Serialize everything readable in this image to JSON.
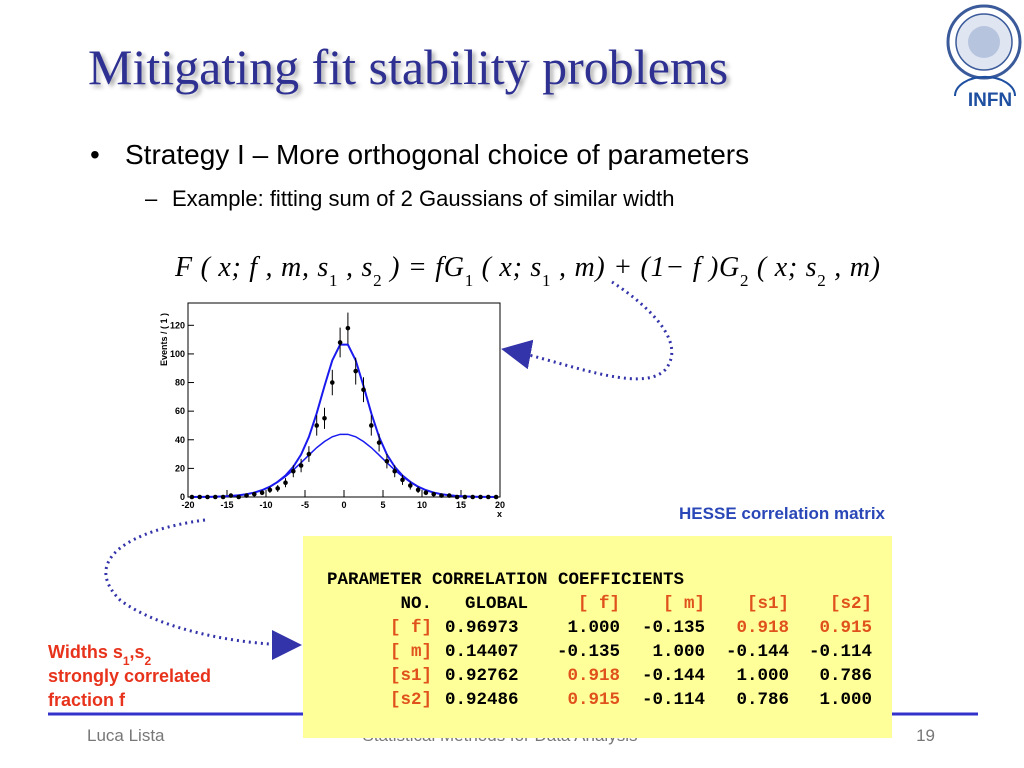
{
  "title": "Mitigating fit stability problems",
  "bullets": [
    {
      "text": "Strategy I – More orthogonal choice of parameters",
      "sub": [
        "Example: fitting sum of 2 Gaussians of similar width"
      ]
    }
  ],
  "formula": [
    "F ( x; f , m, s",
    "1",
    " , s",
    "2",
    " ) = fG",
    "1",
    " ( x; s",
    "1",
    " , m) + (1− f )G",
    "2",
    " ( x; s",
    "2",
    " , m)"
  ],
  "chart_data": {
    "type": "scatter",
    "ylabel": "Events / ( 1 )",
    "xlabel": "x",
    "xlim": [
      -20,
      20
    ],
    "ylim": [
      0,
      130
    ],
    "xticks": [
      -20,
      -15,
      -10,
      -5,
      0,
      5,
      10,
      15,
      20
    ],
    "yticks": [
      0,
      20,
      40,
      60,
      80,
      100,
      120
    ],
    "x": [
      -19.5,
      -18.5,
      -17.5,
      -16.5,
      -15.5,
      -14.5,
      -13.5,
      -12.5,
      -11.5,
      -10.5,
      -9.5,
      -8.5,
      -7.5,
      -6.5,
      -5.5,
      -4.5,
      -3.5,
      -2.5,
      -1.5,
      -0.5,
      0.5,
      1.5,
      2.5,
      3.5,
      4.5,
      5.5,
      6.5,
      7.5,
      8.5,
      9.5,
      10.5,
      11.5,
      12.5,
      13.5,
      14.5,
      15.5,
      16.5,
      17.5,
      18.5,
      19.5
    ],
    "values": [
      0,
      0,
      0,
      0,
      0,
      1,
      0,
      1,
      2,
      3,
      5,
      6,
      10,
      18,
      22,
      30,
      50,
      55,
      80,
      108,
      118,
      88,
      75,
      50,
      38,
      25,
      18,
      12,
      8,
      5,
      3,
      2,
      1,
      1,
      0,
      0,
      0,
      0,
      0,
      0
    ],
    "errors": [
      0,
      0,
      0,
      0,
      0,
      1,
      0,
      1,
      1.4,
      1.7,
      2.2,
      2.4,
      3.2,
      4.2,
      4.7,
      5.5,
      7.1,
      7.4,
      8.9,
      10.4,
      10.9,
      9.4,
      8.7,
      7.1,
      6.2,
      5,
      4.2,
      3.5,
      2.8,
      2.2,
      1.7,
      1.4,
      1,
      1,
      0,
      0,
      0,
      0,
      0,
      0
    ],
    "fit": [
      0,
      0.1,
      0.1,
      0.2,
      0.4,
      0.7,
      1.2,
      1.9,
      3.1,
      4.8,
      7.2,
      10.6,
      15,
      21.1,
      29.7,
      42,
      58.5,
      77.6,
      95.5,
      106.5,
      106.5,
      95.5,
      77.6,
      58.5,
      42,
      29.7,
      21.1,
      15,
      10.6,
      7.2,
      4.8,
      3.1,
      1.9,
      1.2,
      0.7,
      0.4,
      0.2,
      0.1,
      0.1,
      0
    ],
    "component": [
      0,
      0.1,
      0.1,
      0.2,
      0.4,
      0.7,
      1.2,
      1.9,
      3.1,
      4.8,
      7.2,
      10.4,
      14.3,
      18.9,
      24,
      29.3,
      34.5,
      38.8,
      42.1,
      43.8,
      43.8,
      42.1,
      38.8,
      34.5,
      29.3,
      24,
      18.9,
      14.3,
      10.4,
      7.2,
      4.8,
      3.1,
      1.9,
      1.2,
      0.7,
      0.4,
      0.2,
      0.1,
      0.1,
      0
    ],
    "color": "#1a1aee"
  },
  "matrix": {
    "caption": "HESSE correlation matrix",
    "heading": "PARAMETER  CORRELATION COEFFICIENTS",
    "columns": [
      "NO.",
      "GLOBAL",
      "[ f]",
      "[ m]",
      "[s1]",
      "[s2]"
    ],
    "rows": [
      [
        "[ f]",
        "0.96973",
        "1.000",
        "-0.135",
        "0.918",
        "0.915"
      ],
      [
        "[ m]",
        "0.14407",
        "-0.135",
        "1.000",
        "-0.144",
        "-0.114"
      ],
      [
        "[s1]",
        "0.92762",
        "0.918",
        "-0.144",
        "1.000",
        "0.786"
      ],
      [
        "[s2]",
        "0.92486",
        "0.915",
        "-0.114",
        "0.786",
        "1.000"
      ]
    ]
  },
  "note": [
    [
      "Widths s",
      "1",
      ",s",
      "2"
    ],
    [
      "strongly correlated"
    ],
    [
      "fraction f"
    ]
  ],
  "logo_text": "INFN",
  "footer": {
    "author": "Luca Lista",
    "course": "Statistical Methods for Data Analysis",
    "page": "19"
  }
}
